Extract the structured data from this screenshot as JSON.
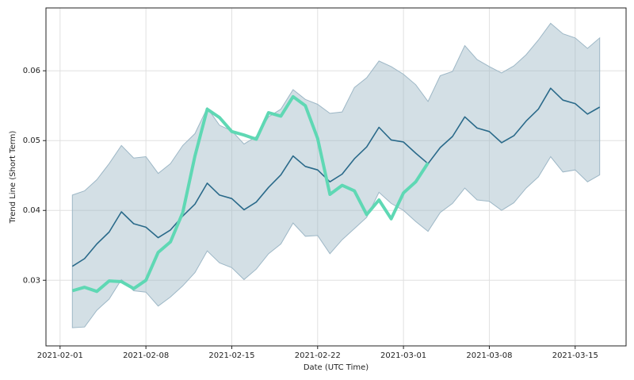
{
  "chart_data": {
    "type": "line",
    "xlabel": "Date (UTC Time)",
    "ylabel": "Trend Line (Short Term)",
    "x": [
      "2021-02-02",
      "2021-02-03",
      "2021-02-04",
      "2021-02-05",
      "2021-02-06",
      "2021-02-07",
      "2021-02-08",
      "2021-02-09",
      "2021-02-10",
      "2021-02-11",
      "2021-02-12",
      "2021-02-13",
      "2021-02-14",
      "2021-02-15",
      "2021-02-16",
      "2021-02-17",
      "2021-02-18",
      "2021-02-19",
      "2021-02-20",
      "2021-02-21",
      "2021-02-22",
      "2021-02-23",
      "2021-02-24",
      "2021-02-25",
      "2021-02-26",
      "2021-02-27",
      "2021-02-28",
      "2021-03-01",
      "2021-03-02",
      "2021-03-03",
      "2021-03-04",
      "2021-03-05",
      "2021-03-06",
      "2021-03-07",
      "2021-03-08",
      "2021-03-09",
      "2021-03-10",
      "2021-03-11",
      "2021-03-12",
      "2021-03-13",
      "2021-03-14",
      "2021-03-15",
      "2021-03-16",
      "2021-03-17"
    ],
    "band": {
      "color": "#9db7c6",
      "upper": [
        0.0422,
        0.0428,
        0.0444,
        0.0467,
        0.0493,
        0.0475,
        0.0477,
        0.0453,
        0.0467,
        0.0493,
        0.051,
        0.0547,
        0.0522,
        0.0514,
        0.0495,
        0.0506,
        0.0534,
        0.0545,
        0.0573,
        0.0559,
        0.0552,
        0.0539,
        0.0541,
        0.0576,
        0.059,
        0.0614,
        0.0606,
        0.0595,
        0.058,
        0.0556,
        0.0593,
        0.0599,
        0.0636,
        0.0616,
        0.0606,
        0.0597,
        0.0607,
        0.0623,
        0.0644,
        0.0668,
        0.0653,
        0.0647,
        0.0632,
        0.0647
      ],
      "lower": [
        0.0232,
        0.0233,
        0.0257,
        0.0273,
        0.0301,
        0.0285,
        0.0283,
        0.0263,
        0.0276,
        0.0292,
        0.0311,
        0.0342,
        0.0325,
        0.0318,
        0.0301,
        0.0316,
        0.0338,
        0.0352,
        0.0382,
        0.0363,
        0.0364,
        0.0338,
        0.0358,
        0.0374,
        0.039,
        0.0426,
        0.041,
        0.04,
        0.0384,
        0.037,
        0.0397,
        0.041,
        0.0432,
        0.0415,
        0.0413,
        0.04,
        0.0411,
        0.0432,
        0.0448,
        0.0477,
        0.0455,
        0.0458,
        0.0441,
        0.0451
      ]
    },
    "series": [
      {
        "color": "#2a6a8a",
        "width": 1.6,
        "values": [
          0.032,
          0.0331,
          0.0352,
          0.0369,
          0.0398,
          0.0381,
          0.0376,
          0.0361,
          0.0372,
          0.0392,
          0.0409,
          0.0439,
          0.0422,
          0.0417,
          0.0401,
          0.0412,
          0.0433,
          0.0451,
          0.0478,
          0.0463,
          0.0458,
          0.0441,
          0.0452,
          0.0474,
          0.0491,
          0.0519,
          0.0501,
          0.0498,
          0.0482,
          0.0467,
          0.049,
          0.0506,
          0.0534,
          0.0518,
          0.0513,
          0.0497,
          0.0507,
          0.0528,
          0.0545,
          0.0575,
          0.0558,
          0.0553,
          0.0538,
          0.0548
        ]
      },
      {
        "color": "#5fd8b4",
        "width": 4,
        "values": [
          0.0285,
          0.029,
          0.0284,
          0.0299,
          0.0298,
          0.0288,
          0.03,
          0.034,
          0.0355,
          0.0397,
          0.0478,
          0.0545,
          0.0533,
          0.0513,
          0.0508,
          0.0502,
          0.054,
          0.0535,
          0.0563,
          0.055,
          0.0503,
          0.0423,
          0.0436,
          0.0428,
          0.0394,
          0.0415,
          0.0388,
          0.0425,
          0.0441,
          0.0468,
          null,
          null,
          null,
          null,
          null,
          null,
          null,
          null,
          null,
          null,
          null,
          null,
          null,
          null
        ]
      }
    ],
    "xlim": [
      "2021-01-30T20:24",
      "2021-03-19T03:36"
    ],
    "xticks": [
      "2021-02-01",
      "2021-02-08",
      "2021-02-15",
      "2021-02-22",
      "2021-03-01",
      "2021-03-08",
      "2021-03-15"
    ],
    "ylim": [
      0.0206,
      0.069
    ],
    "yticks": [
      0.03,
      0.04,
      0.05,
      0.06
    ],
    "grid": true
  }
}
